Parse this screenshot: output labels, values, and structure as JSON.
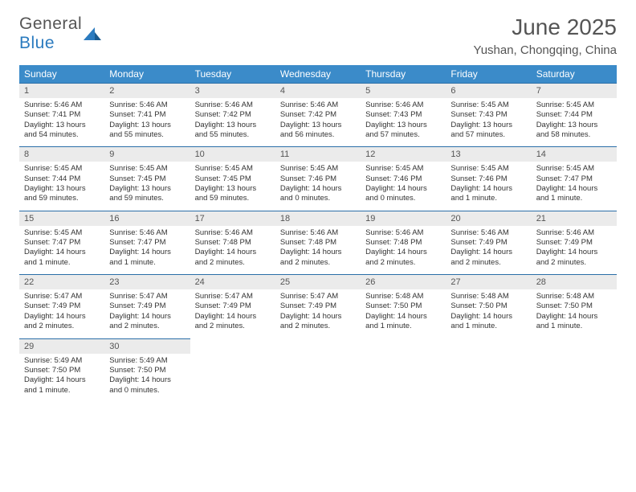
{
  "branding": {
    "logo_word1": "General",
    "logo_word2": "Blue",
    "logo_color_gray": "#6a6a6a",
    "logo_color_blue": "#2b7bbf"
  },
  "header": {
    "title": "June 2025",
    "location": "Yushan, Chongqing, China"
  },
  "style": {
    "header_bg": "#3b8bc9",
    "daynum_bg": "#ebebeb",
    "row_border": "#2b6fa8",
    "text_color": "#333333"
  },
  "weekdays": [
    "Sunday",
    "Monday",
    "Tuesday",
    "Wednesday",
    "Thursday",
    "Friday",
    "Saturday"
  ],
  "days": [
    {
      "n": "1",
      "sunrise": "5:46 AM",
      "sunset": "7:41 PM",
      "daylight": "13 hours and 54 minutes."
    },
    {
      "n": "2",
      "sunrise": "5:46 AM",
      "sunset": "7:41 PM",
      "daylight": "13 hours and 55 minutes."
    },
    {
      "n": "3",
      "sunrise": "5:46 AM",
      "sunset": "7:42 PM",
      "daylight": "13 hours and 55 minutes."
    },
    {
      "n": "4",
      "sunrise": "5:46 AM",
      "sunset": "7:42 PM",
      "daylight": "13 hours and 56 minutes."
    },
    {
      "n": "5",
      "sunrise": "5:46 AM",
      "sunset": "7:43 PM",
      "daylight": "13 hours and 57 minutes."
    },
    {
      "n": "6",
      "sunrise": "5:45 AM",
      "sunset": "7:43 PM",
      "daylight": "13 hours and 57 minutes."
    },
    {
      "n": "7",
      "sunrise": "5:45 AM",
      "sunset": "7:44 PM",
      "daylight": "13 hours and 58 minutes."
    },
    {
      "n": "8",
      "sunrise": "5:45 AM",
      "sunset": "7:44 PM",
      "daylight": "13 hours and 59 minutes."
    },
    {
      "n": "9",
      "sunrise": "5:45 AM",
      "sunset": "7:45 PM",
      "daylight": "13 hours and 59 minutes."
    },
    {
      "n": "10",
      "sunrise": "5:45 AM",
      "sunset": "7:45 PM",
      "daylight": "13 hours and 59 minutes."
    },
    {
      "n": "11",
      "sunrise": "5:45 AM",
      "sunset": "7:46 PM",
      "daylight": "14 hours and 0 minutes."
    },
    {
      "n": "12",
      "sunrise": "5:45 AM",
      "sunset": "7:46 PM",
      "daylight": "14 hours and 0 minutes."
    },
    {
      "n": "13",
      "sunrise": "5:45 AM",
      "sunset": "7:46 PM",
      "daylight": "14 hours and 1 minute."
    },
    {
      "n": "14",
      "sunrise": "5:45 AM",
      "sunset": "7:47 PM",
      "daylight": "14 hours and 1 minute."
    },
    {
      "n": "15",
      "sunrise": "5:45 AM",
      "sunset": "7:47 PM",
      "daylight": "14 hours and 1 minute."
    },
    {
      "n": "16",
      "sunrise": "5:46 AM",
      "sunset": "7:47 PM",
      "daylight": "14 hours and 1 minute."
    },
    {
      "n": "17",
      "sunrise": "5:46 AM",
      "sunset": "7:48 PM",
      "daylight": "14 hours and 2 minutes."
    },
    {
      "n": "18",
      "sunrise": "5:46 AM",
      "sunset": "7:48 PM",
      "daylight": "14 hours and 2 minutes."
    },
    {
      "n": "19",
      "sunrise": "5:46 AM",
      "sunset": "7:48 PM",
      "daylight": "14 hours and 2 minutes."
    },
    {
      "n": "20",
      "sunrise": "5:46 AM",
      "sunset": "7:49 PM",
      "daylight": "14 hours and 2 minutes."
    },
    {
      "n": "21",
      "sunrise": "5:46 AM",
      "sunset": "7:49 PM",
      "daylight": "14 hours and 2 minutes."
    },
    {
      "n": "22",
      "sunrise": "5:47 AM",
      "sunset": "7:49 PM",
      "daylight": "14 hours and 2 minutes."
    },
    {
      "n": "23",
      "sunrise": "5:47 AM",
      "sunset": "7:49 PM",
      "daylight": "14 hours and 2 minutes."
    },
    {
      "n": "24",
      "sunrise": "5:47 AM",
      "sunset": "7:49 PM",
      "daylight": "14 hours and 2 minutes."
    },
    {
      "n": "25",
      "sunrise": "5:47 AM",
      "sunset": "7:49 PM",
      "daylight": "14 hours and 2 minutes."
    },
    {
      "n": "26",
      "sunrise": "5:48 AM",
      "sunset": "7:50 PM",
      "daylight": "14 hours and 1 minute."
    },
    {
      "n": "27",
      "sunrise": "5:48 AM",
      "sunset": "7:50 PM",
      "daylight": "14 hours and 1 minute."
    },
    {
      "n": "28",
      "sunrise": "5:48 AM",
      "sunset": "7:50 PM",
      "daylight": "14 hours and 1 minute."
    },
    {
      "n": "29",
      "sunrise": "5:49 AM",
      "sunset": "7:50 PM",
      "daylight": "14 hours and 1 minute."
    },
    {
      "n": "30",
      "sunrise": "5:49 AM",
      "sunset": "7:50 PM",
      "daylight": "14 hours and 0 minutes."
    }
  ],
  "labels": {
    "sunrise": "Sunrise:",
    "sunset": "Sunset:",
    "daylight": "Daylight:"
  }
}
